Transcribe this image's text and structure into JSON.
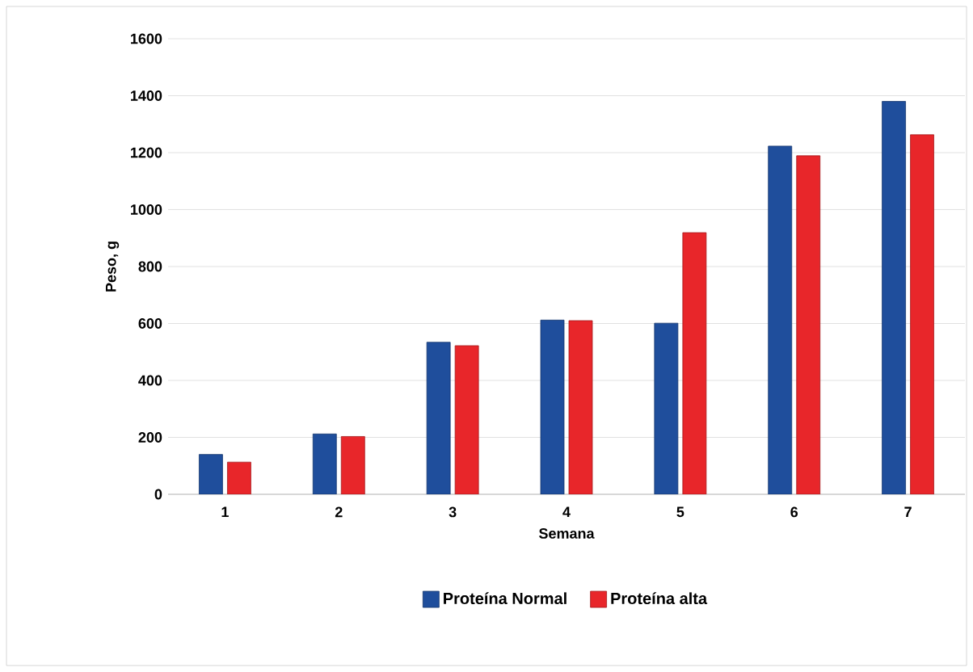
{
  "chart_data": {
    "type": "bar",
    "xlabel": "Semana",
    "ylabel": "Peso, g",
    "categories": [
      "1",
      "2",
      "3",
      "4",
      "5",
      "6",
      "7"
    ],
    "series": [
      {
        "name": "Proteína Normal",
        "color": "#1f4e9c",
        "values": [
          140,
          212,
          534,
          612,
          601,
          1223,
          1380
        ]
      },
      {
        "name": "Proteína alta",
        "color": "#e8262a",
        "values": [
          113,
          203,
          522,
          610,
          919,
          1189,
          1263
        ]
      }
    ],
    "ylim": [
      0,
      1600
    ],
    "yticks": [
      0,
      200,
      400,
      600,
      800,
      1000,
      1200,
      1400,
      1600
    ],
    "grid": "y",
    "legend": "bottom"
  }
}
